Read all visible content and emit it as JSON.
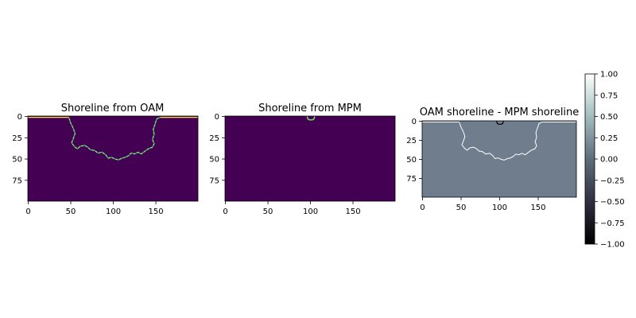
{
  "chart_data": [
    {
      "type": "heatmap",
      "title": "Shoreline from OAM",
      "colormap": "viridis",
      "background_color": "#440154",
      "line_colors": [
        "#fde725",
        "#21918c"
      ],
      "x_ticks": [
        0,
        50,
        100,
        150
      ],
      "y_ticks": [
        0,
        25,
        50,
        75
      ],
      "xlim": [
        0,
        199
      ],
      "ylim": [
        99,
        0
      ],
      "trace": {
        "left_edge_x": [
          0,
          48
        ],
        "left_edge_y": 1,
        "curve": [
          [
            48,
            2
          ],
          [
            50,
            8
          ],
          [
            53,
            14
          ],
          [
            55,
            20
          ],
          [
            53,
            26
          ],
          [
            51,
            31
          ],
          [
            55,
            36
          ],
          [
            58,
            38
          ],
          [
            61,
            35
          ],
          [
            66,
            34
          ],
          [
            70,
            36
          ],
          [
            73,
            39
          ],
          [
            78,
            40
          ],
          [
            82,
            43
          ],
          [
            87,
            42
          ],
          [
            91,
            45
          ],
          [
            94,
            49
          ],
          [
            98,
            48
          ],
          [
            102,
            50
          ],
          [
            106,
            51
          ],
          [
            110,
            49
          ],
          [
            114,
            48
          ],
          [
            118,
            46
          ],
          [
            121,
            43
          ],
          [
            125,
            44
          ],
          [
            129,
            42
          ],
          [
            133,
            44
          ],
          [
            137,
            41
          ],
          [
            141,
            38
          ],
          [
            146,
            36
          ],
          [
            148,
            32
          ],
          [
            146,
            27
          ],
          [
            148,
            21
          ],
          [
            147,
            15
          ],
          [
            149,
            9
          ],
          [
            151,
            3
          ],
          [
            155,
            1
          ]
        ],
        "right_edge_x": [
          155,
          199
        ],
        "right_edge_y": 1
      }
    },
    {
      "type": "heatmap",
      "title": "Shoreline from MPM",
      "colormap": "viridis",
      "background_color": "#440154",
      "line_colors": [
        "#fde725",
        "#21918c"
      ],
      "x_ticks": [
        0,
        50,
        100,
        150
      ],
      "y_ticks": [
        0,
        25,
        50,
        75
      ],
      "xlim": [
        0,
        199
      ],
      "ylim": [
        99,
        0
      ],
      "trace": {
        "curve": [
          [
            96,
            0
          ],
          [
            97,
            3
          ],
          [
            99,
            4
          ],
          [
            102,
            4
          ],
          [
            104,
            3
          ],
          [
            105,
            0
          ]
        ]
      }
    },
    {
      "type": "heatmap",
      "title": "OAM shoreline - MPM shoreline",
      "colormap": "bone",
      "background_color": "#6f7d8d",
      "positive_line_color": "#ffffff",
      "negative_line_color": "#000000",
      "x_ticks": [
        0,
        50,
        100,
        150
      ],
      "y_ticks": [
        0,
        25,
        50,
        75
      ],
      "xlim": [
        0,
        199
      ],
      "ylim": [
        99,
        0
      ],
      "colorbar": {
        "range": [
          -1.0,
          1.0
        ],
        "tick_values": [
          1.0,
          0.75,
          0.5,
          0.25,
          0.0,
          -0.25,
          -0.5,
          -0.75,
          -1.0
        ],
        "tick_labels": [
          "1.00",
          "0.75",
          "0.50",
          "0.25",
          "0.00",
          "−0.25",
          "−0.50",
          "−0.75",
          "−1.00"
        ]
      }
    }
  ]
}
